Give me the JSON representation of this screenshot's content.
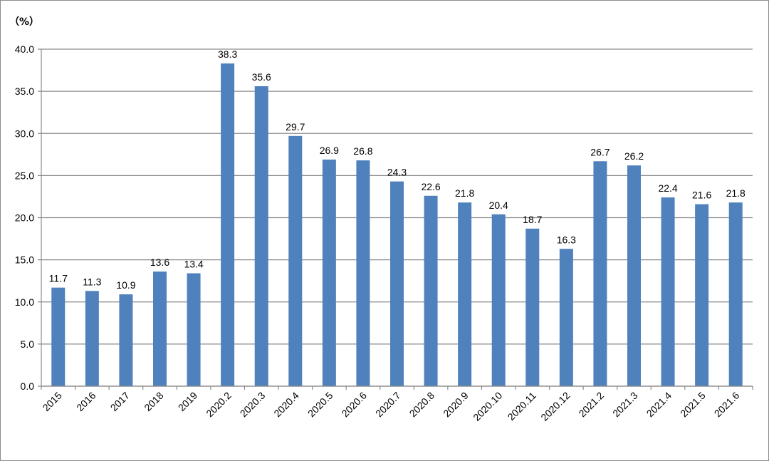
{
  "chart_data": {
    "type": "bar",
    "unit_label": "（%）",
    "categories": [
      "2015",
      "2016",
      "2017",
      "2018",
      "2019",
      "2020.2",
      "2020.3",
      "2020.4",
      "2020.5",
      "2020.6",
      "2020.7",
      "2020.8",
      "2020.9",
      "2020.10",
      "2020.11",
      "2020.12",
      "2021.2",
      "2021.3",
      "2021.4",
      "2021.5",
      "2021.6"
    ],
    "values": [
      11.7,
      11.3,
      10.9,
      13.6,
      13.4,
      38.3,
      35.6,
      29.7,
      26.9,
      26.8,
      24.3,
      22.6,
      21.8,
      20.4,
      18.7,
      16.3,
      26.7,
      26.2,
      22.4,
      21.6,
      21.8
    ],
    "value_labels": [
      "11.7",
      "11.3",
      "10.9",
      "13.6",
      "13.4",
      "38.3",
      "35.6",
      "29.7",
      "26.9",
      "26.8",
      "24.3",
      "22.6",
      "21.8",
      "20.4",
      "18.7",
      "16.3",
      "26.7",
      "26.2",
      "22.4",
      "21.6",
      "21.8"
    ],
    "y_ticks": [
      "0.0",
      "5.0",
      "10.0",
      "15.0",
      "20.0",
      "25.0",
      "30.0",
      "35.0",
      "40.0"
    ],
    "ylim": [
      0,
      40
    ],
    "grid": true,
    "legend": "none",
    "bar_color": "#4f81bd",
    "grid_color": "#8c8c8c"
  }
}
